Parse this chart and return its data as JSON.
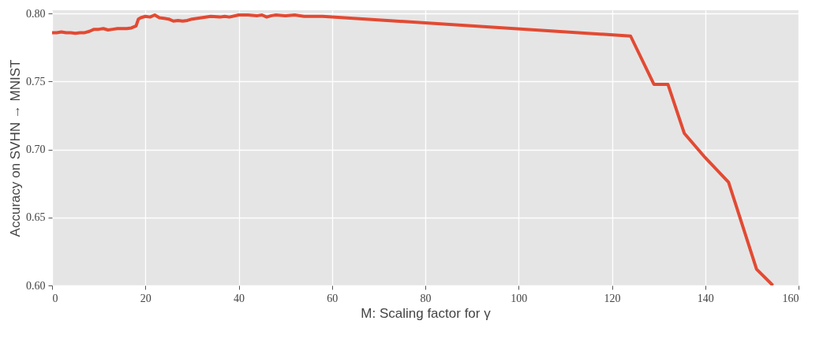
{
  "chart_data": {
    "type": "line",
    "xlabel": "M: Scaling factor for γ",
    "ylabel": "Accuracy on SVHN → MNIST",
    "xlim": [
      0,
      160
    ],
    "xticks": [
      0,
      20,
      40,
      60,
      80,
      100,
      120,
      140,
      160
    ],
    "ylim": [
      0.6,
      0.8025
    ],
    "yticks": [
      {
        "value": 0.6,
        "label": "0.60"
      },
      0.65,
      {
        "value": 0.7,
        "label": "0.70"
      },
      0.75,
      {
        "value": 0.8,
        "label": "0.80"
      }
    ],
    "grid": true,
    "marker": "none",
    "line_style": "solid",
    "series": [
      {
        "color": "#e24a33",
        "x": [
          0,
          1,
          2,
          3,
          4,
          5,
          6,
          7,
          8,
          9,
          10,
          11,
          12,
          13,
          14,
          15,
          16,
          17,
          18,
          18.5,
          19,
          20,
          21,
          22,
          23,
          24,
          25,
          26,
          27,
          28,
          29,
          30,
          32,
          34,
          36,
          37,
          38,
          40,
          42,
          44,
          45,
          46,
          47,
          48,
          50,
          52,
          54,
          56,
          58,
          124,
          129,
          132,
          135.5,
          140,
          145,
          151,
          154.5
        ],
        "values": [
          0.786,
          0.786,
          0.7865,
          0.786,
          0.786,
          0.7855,
          0.786,
          0.786,
          0.787,
          0.7885,
          0.7885,
          0.789,
          0.788,
          0.7885,
          0.789,
          0.789,
          0.789,
          0.7895,
          0.791,
          0.796,
          0.797,
          0.798,
          0.7975,
          0.799,
          0.797,
          0.7965,
          0.796,
          0.7945,
          0.795,
          0.7945,
          0.795,
          0.796,
          0.797,
          0.798,
          0.7975,
          0.798,
          0.7975,
          0.799,
          0.799,
          0.7985,
          0.799,
          0.7975,
          0.7985,
          0.799,
          0.7985,
          0.799,
          0.798,
          0.798,
          0.798,
          0.7835,
          0.748,
          0.748,
          0.712,
          0.694,
          0.676,
          0.612,
          0.6
        ]
      }
    ]
  }
}
